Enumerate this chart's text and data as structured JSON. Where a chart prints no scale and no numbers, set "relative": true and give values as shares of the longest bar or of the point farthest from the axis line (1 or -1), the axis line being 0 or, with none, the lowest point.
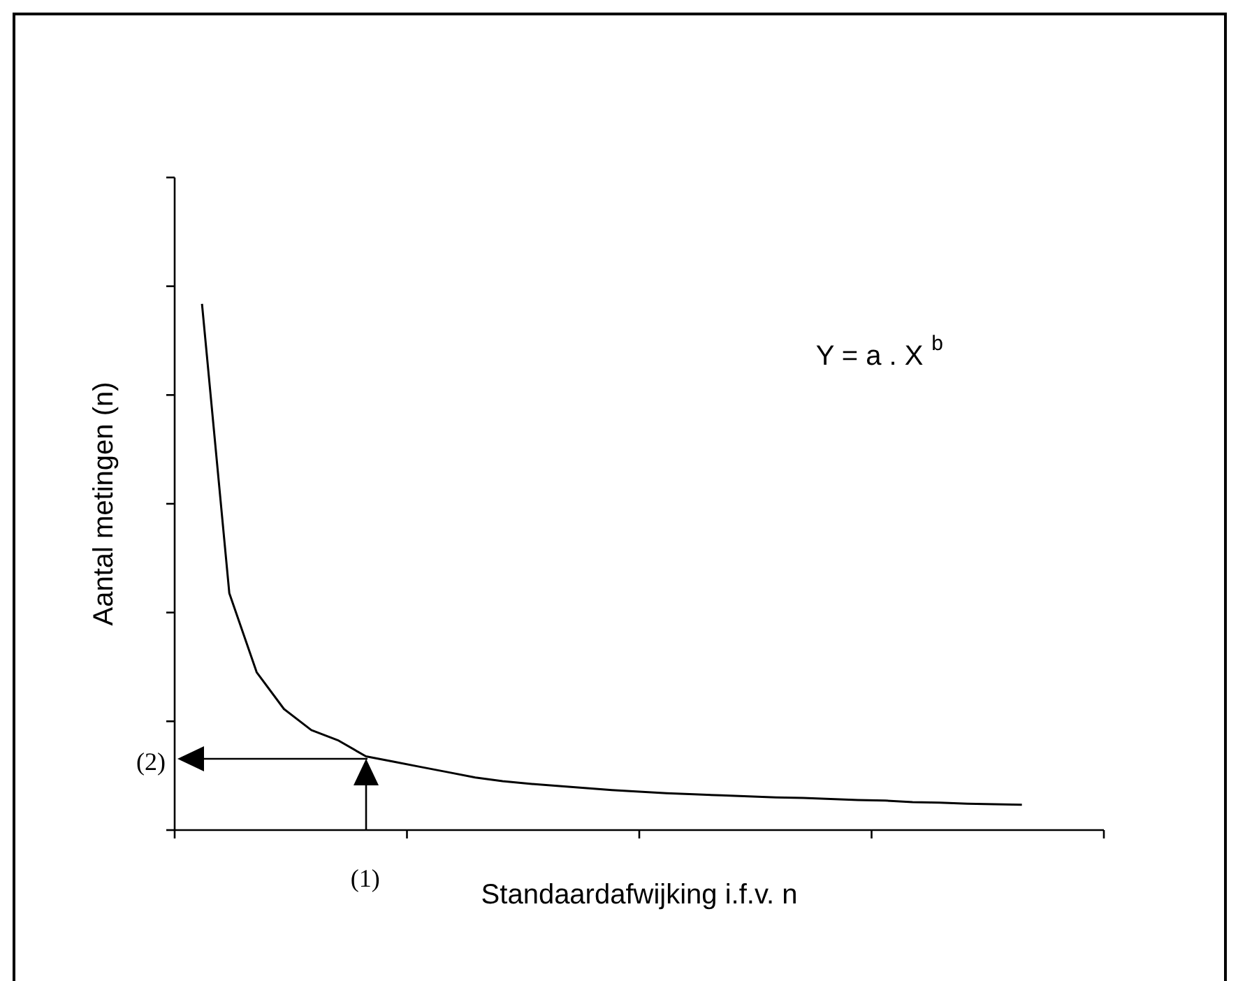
{
  "chart_data": {
    "type": "line",
    "relative": true,
    "xlabel": "Standaardafwijking i.f.v. n",
    "ylabel": "Aantal metingen (n)",
    "categories": [
      null,
      null,
      null,
      null,
      null,
      null,
      null,
      null,
      null,
      null,
      null,
      null,
      null,
      null,
      null,
      null,
      null,
      null,
      null,
      null,
      null,
      null,
      null,
      null,
      null,
      null,
      null,
      null,
      null,
      null,
      null,
      null,
      null,
      null,
      null
    ],
    "series": [
      {
        "color": "#000000",
        "values": [
          null,
          1,
          0.45,
          0.3,
          0.23,
          0.19,
          0.17,
          0.14,
          0.13,
          0.12,
          0.11,
          0.1,
          0.093,
          0.088,
          0.084,
          0.08,
          0.076,
          0.073,
          0.07,
          0.068,
          0.066,
          0.064,
          0.062,
          0.061,
          0.059,
          0.057,
          0.056,
          0.053,
          0.052,
          0.05,
          0.049,
          0.048,
          null,
          null,
          null
        ]
      }
    ],
    "annotations": [
      "Y = a . X $^{b}$",
      "(1)",
      "(2)"
    ],
    "legend": false,
    "grid": false,
    "marker": "none",
    "line_style": "solid"
  }
}
